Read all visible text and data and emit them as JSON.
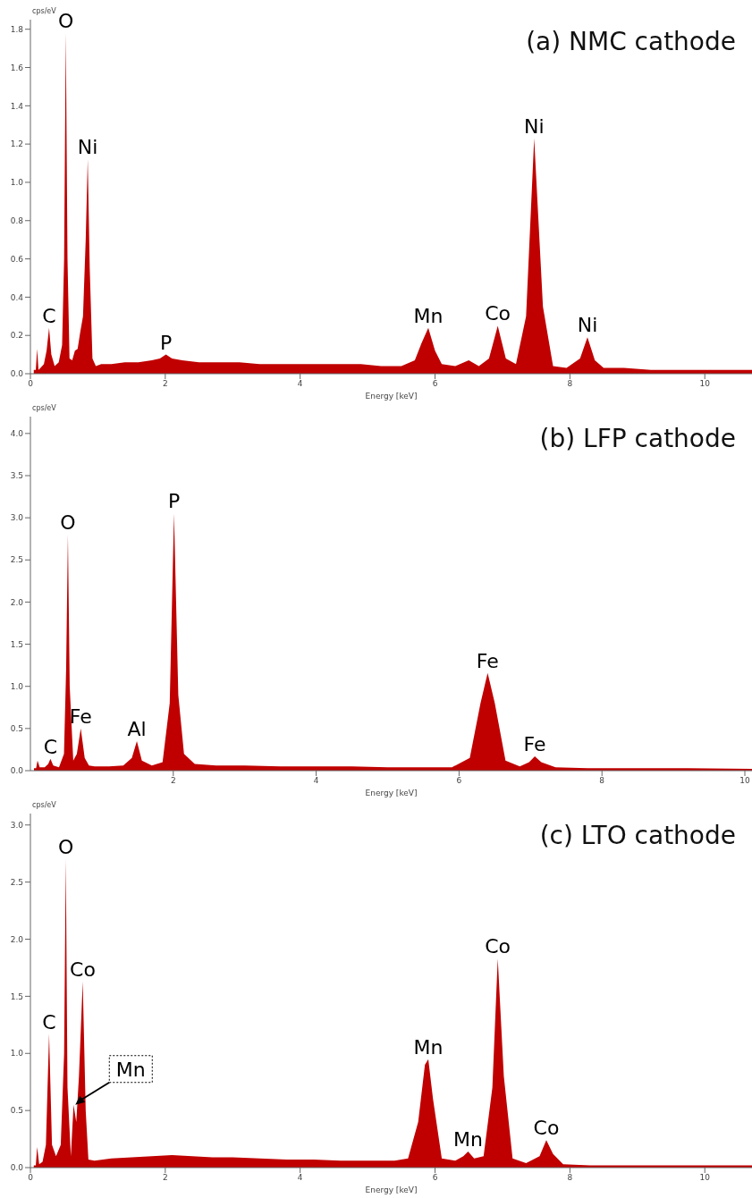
{
  "chart_data": [
    {
      "type": "area",
      "title": "(a) NMC cathode",
      "xlabel": "Energy [keV]",
      "ylabel": "cps/eV",
      "color": "#c00000",
      "x": [
        0.05,
        0.08,
        0.1,
        0.12,
        0.15,
        0.2,
        0.24,
        0.277,
        0.31,
        0.36,
        0.42,
        0.47,
        0.5,
        0.525,
        0.55,
        0.58,
        0.62,
        0.66,
        0.7,
        0.74,
        0.78,
        0.82,
        0.85,
        0.88,
        0.92,
        0.97,
        1.05,
        1.2,
        1.4,
        1.6,
        1.8,
        1.92,
        2.01,
        2.1,
        2.25,
        2.5,
        2.8,
        3.1,
        3.4,
        3.7,
        4.0,
        4.3,
        4.6,
        4.9,
        5.2,
        5.5,
        5.7,
        5.8,
        5.9,
        6.0,
        6.1,
        6.3,
        6.5,
        6.65,
        6.8,
        6.93,
        7.05,
        7.2,
        7.35,
        7.47,
        7.6,
        7.75,
        7.95,
        8.15,
        8.26,
        8.37,
        8.5,
        8.8,
        9.2,
        9.6,
        10.0,
        10.4,
        10.7
      ],
      "values": [
        0.02,
        0.02,
        0.13,
        0.02,
        0.03,
        0.05,
        0.12,
        0.24,
        0.1,
        0.04,
        0.06,
        0.15,
        0.6,
        1.78,
        0.6,
        0.08,
        0.07,
        0.12,
        0.13,
        0.22,
        0.3,
        0.7,
        1.12,
        0.55,
        0.08,
        0.04,
        0.05,
        0.05,
        0.06,
        0.06,
        0.07,
        0.08,
        0.1,
        0.08,
        0.07,
        0.06,
        0.06,
        0.06,
        0.05,
        0.05,
        0.05,
        0.05,
        0.05,
        0.05,
        0.04,
        0.04,
        0.07,
        0.16,
        0.24,
        0.12,
        0.05,
        0.04,
        0.07,
        0.04,
        0.08,
        0.25,
        0.08,
        0.05,
        0.3,
        1.23,
        0.35,
        0.04,
        0.03,
        0.08,
        0.19,
        0.07,
        0.03,
        0.03,
        0.02,
        0.02,
        0.02,
        0.02,
        0.02
      ],
      "xlim": [
        0,
        10.7
      ],
      "xticks": [
        0,
        2,
        4,
        6,
        8,
        10
      ],
      "ylim": [
        0,
        1.85
      ],
      "yticks": [
        {
          "value": 0,
          "label": "0.0"
        },
        {
          "value": 0.2,
          "label": "0.2"
        },
        {
          "value": 0.4,
          "label": "0.4"
        },
        {
          "value": 0.6,
          "label": "0.6"
        },
        {
          "value": 0.8,
          "label": "0.8"
        },
        {
          "value": 1,
          "label": "1.0"
        },
        {
          "value": 1.2,
          "label": "1.2"
        },
        {
          "value": 1.4,
          "label": "1.4"
        },
        {
          "value": 1.6,
          "label": "1.6"
        },
        {
          "value": 1.8,
          "label": "1.8"
        }
      ],
      "annotations": [
        {
          "text": "C",
          "x": 0.277,
          "y": 0.24
        },
        {
          "text": "O",
          "x": 0.525,
          "y": 1.78
        },
        {
          "text": "Ni",
          "x": 0.85,
          "y": 1.12
        },
        {
          "text": "P",
          "x": 2.01,
          "y": 0.1
        },
        {
          "text": "Mn",
          "x": 5.9,
          "y": 0.24
        },
        {
          "text": "Co",
          "x": 6.93,
          "y": 0.25
        },
        {
          "text": "Ni",
          "x": 7.47,
          "y": 1.23
        },
        {
          "text": "Ni",
          "x": 8.26,
          "y": 0.19
        }
      ]
    },
    {
      "type": "area",
      "title": "(b) LFP cathode",
      "xlabel": "Energy [keV]",
      "ylabel": "cps/eV",
      "color": "#c00000",
      "x": [
        0.05,
        0.08,
        0.1,
        0.13,
        0.2,
        0.25,
        0.28,
        0.32,
        0.4,
        0.47,
        0.5,
        0.525,
        0.55,
        0.6,
        0.65,
        0.705,
        0.76,
        0.82,
        0.9,
        1.1,
        1.3,
        1.42,
        1.49,
        1.56,
        1.7,
        1.85,
        1.95,
        2.01,
        2.07,
        2.15,
        2.3,
        2.6,
        3.0,
        3.5,
        4.0,
        4.5,
        5.0,
        5.5,
        5.9,
        6.15,
        6.3,
        6.4,
        6.5,
        6.65,
        6.85,
        6.98,
        7.06,
        7.15,
        7.35,
        7.8,
        8.5,
        9.2,
        10.1
      ],
      "values": [
        0.03,
        0.03,
        0.12,
        0.04,
        0.04,
        0.08,
        0.14,
        0.06,
        0.04,
        0.2,
        1.2,
        2.8,
        1.0,
        0.12,
        0.2,
        0.5,
        0.15,
        0.06,
        0.05,
        0.05,
        0.06,
        0.15,
        0.35,
        0.12,
        0.06,
        0.1,
        0.8,
        3.05,
        0.9,
        0.2,
        0.08,
        0.06,
        0.06,
        0.05,
        0.05,
        0.05,
        0.04,
        0.04,
        0.04,
        0.15,
        0.8,
        1.16,
        0.8,
        0.12,
        0.05,
        0.1,
        0.17,
        0.1,
        0.04,
        0.03,
        0.03,
        0.03,
        0.02
      ],
      "xlim": [
        0,
        10.1
      ],
      "xticks": [
        2,
        4,
        6,
        8,
        10
      ],
      "ylim": [
        0,
        4.2
      ],
      "yticks": [
        {
          "value": 0,
          "label": "0.0"
        },
        {
          "value": 0.5,
          "label": "0.5"
        },
        {
          "value": 1,
          "label": "1.0"
        },
        {
          "value": 1.5,
          "label": "1.5"
        },
        {
          "value": 2,
          "label": "2.0"
        },
        {
          "value": 2.5,
          "label": "2.5"
        },
        {
          "value": 3,
          "label": "3.0"
        },
        {
          "value": 3.5,
          "label": "3.5"
        },
        {
          "value": 4,
          "label": "4.0"
        }
      ],
      "annotations": [
        {
          "text": "C",
          "x": 0.28,
          "y": 0.14
        },
        {
          "text": "O",
          "x": 0.525,
          "y": 2.8
        },
        {
          "text": "Fe",
          "x": 0.705,
          "y": 0.5
        },
        {
          "text": "Al",
          "x": 1.49,
          "y": 0.35
        },
        {
          "text": "P",
          "x": 2.01,
          "y": 3.05
        },
        {
          "text": "Fe",
          "x": 6.4,
          "y": 1.16
        },
        {
          "text": "Fe",
          "x": 7.06,
          "y": 0.17
        }
      ]
    },
    {
      "type": "area",
      "title": "(c) LTO cathode",
      "xlabel": "Energy [keV]",
      "ylabel": "cps/eV",
      "color": "#c00000",
      "x": [
        0.05,
        0.08,
        0.1,
        0.13,
        0.18,
        0.23,
        0.277,
        0.32,
        0.38,
        0.45,
        0.5,
        0.525,
        0.55,
        0.6,
        0.64,
        0.68,
        0.72,
        0.776,
        0.82,
        0.86,
        0.95,
        1.2,
        1.5,
        1.8,
        2.1,
        2.4,
        2.7,
        3.0,
        3.4,
        3.8,
        4.2,
        4.6,
        5.0,
        5.4,
        5.6,
        5.75,
        5.85,
        5.9,
        5.97,
        6.1,
        6.3,
        6.42,
        6.49,
        6.58,
        6.72,
        6.85,
        6.93,
        7.02,
        7.15,
        7.35,
        7.55,
        7.65,
        7.75,
        7.9,
        8.3,
        8.8,
        9.5,
        10.1,
        10.7
      ],
      "values": [
        0.02,
        0.02,
        0.18,
        0.03,
        0.05,
        0.2,
        1.17,
        0.2,
        0.1,
        0.2,
        1.0,
        2.7,
        0.7,
        0.1,
        0.55,
        0.4,
        0.8,
        1.63,
        0.5,
        0.07,
        0.06,
        0.08,
        0.09,
        0.1,
        0.11,
        0.1,
        0.09,
        0.09,
        0.08,
        0.07,
        0.07,
        0.06,
        0.06,
        0.06,
        0.08,
        0.4,
        0.9,
        0.95,
        0.6,
        0.08,
        0.06,
        0.1,
        0.14,
        0.08,
        0.1,
        0.7,
        1.83,
        0.8,
        0.08,
        0.04,
        0.1,
        0.24,
        0.12,
        0.03,
        0.02,
        0.02,
        0.02,
        0.02,
        0.02
      ],
      "xlim": [
        0,
        10.7
      ],
      "xticks": [
        0,
        2,
        4,
        6,
        8,
        10
      ],
      "ylim": [
        0,
        3.1
      ],
      "yticks": [
        {
          "value": 0,
          "label": "0.0"
        },
        {
          "value": 0.5,
          "label": "0.5"
        },
        {
          "value": 1,
          "label": "1.0"
        },
        {
          "value": 1.5,
          "label": "1.5"
        },
        {
          "value": 2,
          "label": "2.0"
        },
        {
          "value": 2.5,
          "label": "2.5"
        },
        {
          "value": 3,
          "label": "3.0"
        }
      ],
      "annotations": [
        {
          "text": "C",
          "x": 0.277,
          "y": 1.17
        },
        {
          "text": "O",
          "x": 0.525,
          "y": 2.7
        },
        {
          "text": "Co",
          "x": 0.776,
          "y": 1.63
        },
        {
          "text": "Mn",
          "x": 0.64,
          "y": 0.55
        },
        {
          "text": "Mn",
          "x": 5.9,
          "y": 0.95
        },
        {
          "text": "Mn",
          "x": 6.49,
          "y": 0.14
        },
        {
          "text": "Co",
          "x": 6.93,
          "y": 1.83
        },
        {
          "text": "Co",
          "x": 7.65,
          "y": 0.24
        }
      ]
    }
  ]
}
